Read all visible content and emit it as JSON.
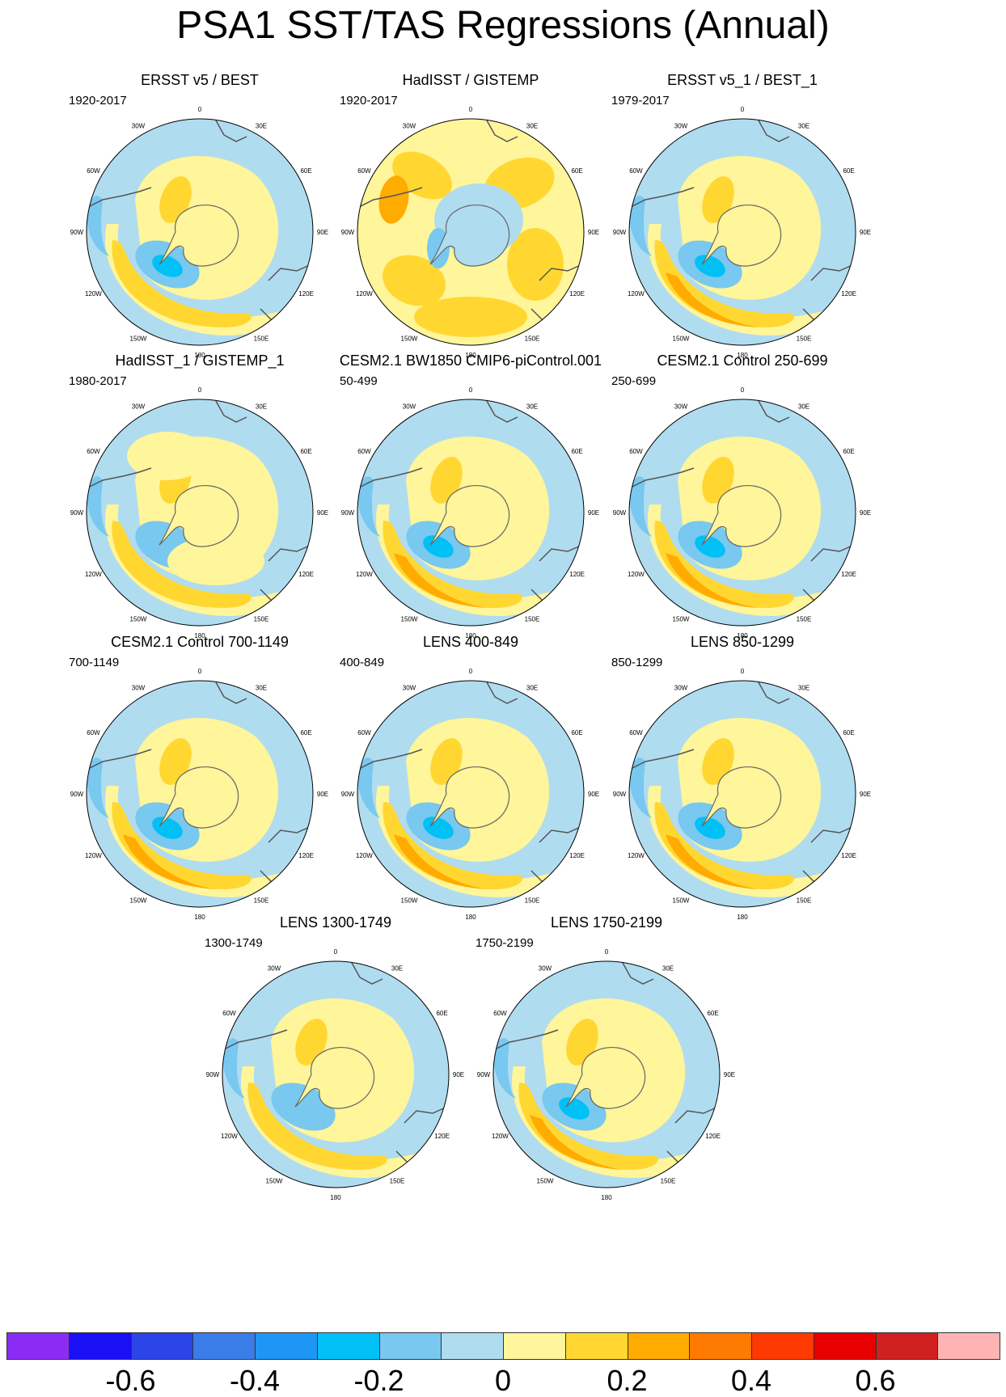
{
  "title": "PSA1 SST/TAS Regressions (Annual)",
  "lon_labels": [
    "0",
    "30E",
    "60E",
    "90E",
    "120E",
    "150E",
    "180",
    "150W",
    "120W",
    "90W",
    "60W",
    "30W"
  ],
  "panels": [
    {
      "title": "ERSST v5 / BEST",
      "period": "1920-2017",
      "pattern": "obs_a"
    },
    {
      "title": "HadISST / GISTEMP",
      "period": "1920-2017",
      "pattern": "warm"
    },
    {
      "title": "ERSST v5_1 / BEST_1",
      "period": "1979-2017",
      "pattern": "obs_c"
    },
    {
      "title": "HadISST_1 / GISTEMP_1",
      "period": "1980-2017",
      "pattern": "obs_d"
    },
    {
      "title": "CESM2.1 BW1850 CMIP6-piControl.001",
      "period": "50-499",
      "pattern": "model"
    },
    {
      "title": "CESM2.1 Control 250-699",
      "period": "250-699",
      "pattern": "model"
    },
    {
      "title": "CESM2.1 Control 700-1149",
      "period": "700-1149",
      "pattern": "model"
    },
    {
      "title": "LENS 400-849",
      "period": "400-849",
      "pattern": "model"
    },
    {
      "title": "LENS 850-1299",
      "period": "850-1299",
      "pattern": "model"
    },
    {
      "title": "LENS 1300-1749",
      "period": "1300-1749",
      "pattern": "model_weak"
    },
    {
      "title": "LENS 1750-2199",
      "period": "1750-2199",
      "pattern": "model"
    }
  ],
  "colorbar": {
    "colors": [
      "#8b2cf5",
      "#1a10f5",
      "#2b45e8",
      "#3a7ce8",
      "#1e96f5",
      "#00c0f5",
      "#78c8f0",
      "#b0dcf0",
      "#fff59a",
      "#ffd730",
      "#ffab00",
      "#ff7a00",
      "#ff3a00",
      "#e80000",
      "#d02020",
      "#ffb4b4"
    ],
    "labels": [
      "-0.6",
      "-0.4",
      "-0.2",
      "0",
      "0.2",
      "0.4",
      "0.6"
    ]
  }
}
